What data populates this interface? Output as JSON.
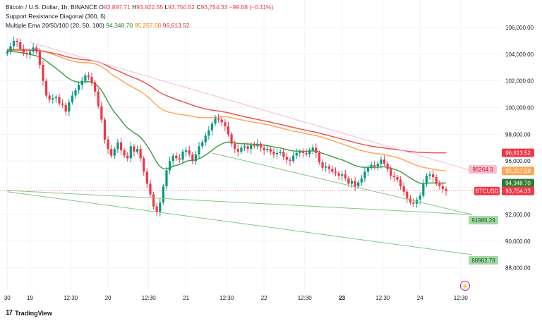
{
  "legend": {
    "symbol": "Bitcoin / U.S. Dollar, 1h, BINANCE",
    "o_label": "O",
    "o_value": "93,897.71",
    "h_label": "H",
    "h_value": "93,922.55",
    "l_label": "L",
    "l_value": "93,750.52",
    "c_label": "C",
    "c_value": "93,754.33",
    "change": "−99.08 (−0.11%)",
    "indicator1": "Support Resistance Diagonal (300, 6)",
    "indicator2": "Multiple Ema 20/50/100 (20, 50, 100)",
    "ema20": "94,348.70",
    "ema50": "95,257.58",
    "ema100": "96,613.52"
  },
  "footer": {
    "brand": "TradingView",
    "logo_mark": "17"
  },
  "colors": {
    "up": "#089981",
    "down": "#f23645",
    "ema20": "#43a047",
    "ema50": "#ffa757",
    "ema100": "#ef5350",
    "support": "#81c784",
    "resistance": "#f8bbd0"
  },
  "chart_data": {
    "type": "candlestick",
    "ylim": [
      86500,
      107000
    ],
    "y_ticks": [
      "106,000.00",
      "104,000.00",
      "102,000.00",
      "100,000.00",
      "98,000.00",
      "96,000.00",
      "94,000.00",
      "92,000.00",
      "90,000.00",
      "88,000.00"
    ],
    "y_tick_values": [
      106000,
      104000,
      102000,
      100000,
      98000,
      96000,
      94000,
      92000,
      90000,
      88000
    ],
    "x_ticks": [
      {
        "label": "30",
        "bar": 0,
        "bold": false
      },
      {
        "label": "19",
        "bar": 7,
        "bold": false
      },
      {
        "label": "12:30",
        "bar": 19.5,
        "bold": false
      },
      {
        "label": "20",
        "bar": 31,
        "bold": false
      },
      {
        "label": "12:30",
        "bar": 43.5,
        "bold": false
      },
      {
        "label": "21",
        "bar": 55,
        "bold": false
      },
      {
        "label": "12:30",
        "bar": 67.5,
        "bold": false
      },
      {
        "label": "22",
        "bar": 79,
        "bold": false
      },
      {
        "label": "12:30",
        "bar": 91.5,
        "bold": false
      },
      {
        "label": "23",
        "bar": 103,
        "bold": true
      },
      {
        "label": "12:30",
        "bar": 115.5,
        "bold": false
      },
      {
        "label": "24",
        "bar": 127,
        "bold": false
      },
      {
        "label": "12:30",
        "bar": 139.5,
        "bold": false
      }
    ],
    "close": [
      104200,
      104600,
      105000,
      104900,
      104400,
      104100,
      104000,
      104200,
      104500,
      104200,
      103200,
      102000,
      100900,
      100600,
      100700,
      100800,
      100300,
      100200,
      99700,
      100400,
      100900,
      101300,
      101700,
      102000,
      102400,
      102300,
      101900,
      101200,
      100100,
      99100,
      97600,
      96900,
      96400,
      96900,
      97400,
      96800,
      96400,
      96200,
      97100,
      96700,
      96900,
      96200,
      95200,
      94300,
      93500,
      92600,
      92200,
      92900,
      94100,
      95300,
      96000,
      96400,
      96200,
      96100,
      96700,
      96800,
      96500,
      96000,
      96500,
      97100,
      97400,
      97900,
      98300,
      98800,
      99200,
      99100,
      98900,
      98600,
      98000,
      97300,
      96900,
      96700,
      97000,
      97100,
      96900,
      97200,
      97100,
      97300,
      97000,
      96800,
      96900,
      96700,
      96500,
      96600,
      96700,
      96300,
      96100,
      96000,
      96400,
      96600,
      96700,
      96600,
      96500,
      96800,
      97000,
      96600,
      95900,
      95500,
      95600,
      95400,
      95200,
      95100,
      94900,
      95000,
      94700,
      94300,
      94500,
      94100,
      94400,
      94700,
      95200,
      95500,
      95700,
      95600,
      95800,
      96100,
      95800,
      95400,
      94900,
      94800,
      94600,
      94100,
      93700,
      93200,
      92900,
      92800,
      93100,
      93400,
      94300,
      94900,
      95000,
      94800,
      94300,
      94100,
      93900,
      93754
    ],
    "series": [
      {
        "name": "EMA 20",
        "values": [
          104232,
          104205,
          104180,
          104150,
          104115,
          104075,
          104030,
          103980,
          103930,
          103870,
          103780,
          103650,
          103480,
          103300,
          103120,
          102940,
          102740,
          102550,
          102340,
          102170,
          102030,
          101950,
          101900,
          101900,
          101930,
          101940,
          101890,
          101780,
          101570,
          101280,
          100870,
          100440,
          100000,
          99640,
          99360,
          99050,
          98750,
          98470,
          98310,
          98110,
          97970,
          97770,
          97490,
          97140,
          96760,
          96310,
          95890,
          95580,
          95420,
          95410,
          95480,
          95590,
          95670,
          95730,
          95850,
          95960,
          96040,
          96030,
          96080,
          96180,
          96290,
          96440,
          96610,
          96800,
          96990,
          97150,
          97280,
          97380,
          97420,
          97410,
          97360,
          97310,
          97290,
          97290,
          97270,
          97270,
          97250,
          97240,
          97220,
          97180,
          97150,
          97110,
          97050,
          97010,
          96980,
          96920,
          96850,
          96790,
          96750,
          96740,
          96740,
          96730,
          96720,
          96740,
          96760,
          96740,
          96670,
          96570,
          96490,
          96410,
          96320,
          96240,
          96160,
          96090,
          95990,
          95880,
          95770,
          95660,
          95580,
          95540,
          95530,
          95530,
          95520,
          95530,
          95530,
          95560,
          95560,
          95520,
          95450,
          95380,
          95310,
          95200,
          95060,
          94880,
          94730,
          94580,
          94440,
          94340,
          94310,
          94330,
          94350,
          94360,
          94350,
          94348,
          94348,
          94348.7
        ]
      },
      {
        "name": "EMA 50",
        "values": [
          104380,
          104375,
          104370,
          104365,
          104355,
          104345,
          104335,
          104325,
          104315,
          104300,
          104270,
          104220,
          104150,
          104070,
          103990,
          103910,
          103820,
          103730,
          103630,
          103550,
          103480,
          103430,
          103390,
          103370,
          103360,
          103350,
          103320,
          103270,
          103180,
          103060,
          102890,
          102710,
          102520,
          102360,
          102220,
          102060,
          101900,
          101740,
          101610,
          101470,
          101350,
          101210,
          101040,
          100850,
          100640,
          100400,
          100160,
          99960,
          99810,
          99710,
          99640,
          99590,
          99540,
          99490,
          99460,
          99430,
          99390,
          99340,
          99300,
          99270,
          99250,
          99240,
          99240,
          99260,
          99280,
          99300,
          99310,
          99310,
          99290,
          99240,
          99190,
          99130,
          99080,
          99030,
          98980,
          98940,
          98900,
          98860,
          98810,
          98760,
          98710,
          98660,
          98600,
          98540,
          98490,
          98420,
          98360,
          98300,
          98240,
          98190,
          98140,
          98090,
          98040,
          98000,
          97960,
          97910,
          97840,
          97760,
          97690,
          97610,
          97530,
          97450,
          97370,
          97290,
          97200,
          97110,
          97030,
          96930,
          96850,
          96780,
          96720,
          96670,
          96620,
          96570,
          96540,
          96510,
          96480,
          96430,
          96380,
          96320,
          96250,
          96170,
          96080,
          95970,
          95860,
          95760,
          95670,
          95590,
          95530,
          95480,
          95430,
          95390,
          95340,
          95300,
          95270,
          95257.58
        ]
      },
      {
        "name": "EMA 100",
        "values": [
          104300,
          104302,
          104305,
          104307,
          104306,
          104303,
          104298,
          104294,
          104292,
          104286,
          104265,
          104230,
          104185,
          104130,
          104080,
          104025,
          103965,
          103900,
          103830,
          103770,
          103715,
          103670,
          103630,
          103600,
          103575,
          103550,
          103520,
          103475,
          103410,
          103330,
          103220,
          103100,
          102975,
          102860,
          102760,
          102650,
          102540,
          102430,
          102330,
          102230,
          102140,
          102030,
          101910,
          101770,
          101620,
          101450,
          101280,
          101130,
          101000,
          100890,
          100790,
          100700,
          100610,
          100520,
          100440,
          100360,
          100270,
          100180,
          100100,
          100030,
          99960,
          99900,
          99850,
          99810,
          99780,
          99740,
          99700,
          99660,
          99610,
          99550,
          99490,
          99430,
          99370,
          99310,
          99260,
          99210,
          99160,
          99110,
          99060,
          99010,
          98960,
          98910,
          98850,
          98800,
          98750,
          98690,
          98630,
          98570,
          98510,
          98460,
          98400,
          98350,
          98290,
          98240,
          98200,
          98150,
          98090,
          98020,
          97960,
          97900,
          97830,
          97770,
          97710,
          97640,
          97580,
          97510,
          97450,
          97380,
          97320,
          97260,
          97210,
          97160,
          97110,
          97070,
          97030,
          97000,
          96970,
          96940,
          96910,
          96880,
          96850,
          96810,
          96770,
          96730,
          96700,
          96680,
          96660,
          96650,
          96640,
          96630,
          96620,
          96620,
          96615,
          96614,
          96613.6,
          96613.52
        ]
      }
    ],
    "support_lines": [
      {
        "label": "91986.29",
        "from": [
          0,
          93800
        ],
        "to": [
          143,
          91986.29
        ]
      },
      {
        "label": "88982.79",
        "from": [
          0,
          93700
        ],
        "to": [
          143,
          88982.79
        ]
      },
      {
        "label": "",
        "from": [
          63,
          96600
        ],
        "to": [
          143,
          91986.29
        ]
      }
    ],
    "resistance_line": {
      "label": "95264.3",
      "from": [
        7,
        104900
      ],
      "to": [
        143,
        95264.3
      ]
    },
    "last_price_label": "93,754.33",
    "ticker_label": "BTCUSD",
    "price_tags": [
      {
        "label": "96,613.52",
        "value": 96613.52,
        "color": "#f23645"
      },
      {
        "label": "95,257.58",
        "value": 95257.58,
        "color": "#ffa757"
      },
      {
        "label": "94,348.70",
        "value": 94348.7,
        "color": "#2e7d32"
      },
      {
        "label": "93,754.33",
        "value": 93754.33,
        "color": "#f23645"
      }
    ]
  }
}
